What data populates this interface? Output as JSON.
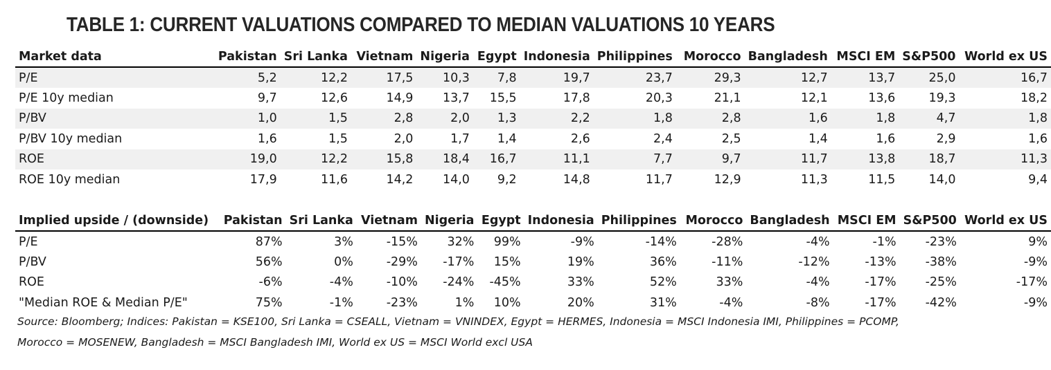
{
  "title": "TABLE 1: CURRENT VALUATIONS COMPARED TO MEDIAN VALUATIONS 10 YEARS",
  "market_data": {
    "headers": [
      "Market data",
      "Pakistan",
      "Sri Lanka",
      "Vietnam",
      "Nigeria",
      "Egypt",
      "Indonesia",
      "Philippines",
      "Morocco",
      "Bangladesh",
      "MSCI EM",
      "S&P500",
      "World ex US"
    ],
    "rows": [
      [
        "P/E",
        "5,2",
        "12,2",
        "17,5",
        "10,3",
        "7,8",
        "19,7",
        "23,7",
        "29,3",
        "12,7",
        "13,7",
        "25,0",
        "16,7"
      ],
      [
        "P/E 10y median",
        "9,7",
        "12,6",
        "14,9",
        "13,7",
        "15,5",
        "17,8",
        "20,3",
        "21,1",
        "12,1",
        "13,6",
        "19,3",
        "18,2"
      ],
      [
        "P/BV",
        "1,0",
        "1,5",
        "2,8",
        "2,0",
        "1,3",
        "2,2",
        "1,8",
        "2,8",
        "1,6",
        "1,8",
        "4,7",
        "1,8"
      ],
      [
        "P/BV 10y median",
        "1,6",
        "1,5",
        "2,0",
        "1,7",
        "1,4",
        "2,6",
        "2,4",
        "2,5",
        "1,4",
        "1,6",
        "2,9",
        "1,6"
      ],
      [
        "ROE",
        "19,0",
        "12,2",
        "15,8",
        "18,4",
        "16,7",
        "11,1",
        "7,7",
        "9,7",
        "11,7",
        "13,8",
        "18,7",
        "11,3"
      ],
      [
        "ROE 10y median",
        "17,9",
        "11,6",
        "14,2",
        "14,0",
        "9,2",
        "14,8",
        "11,7",
        "12,9",
        "11,3",
        "11,5",
        "14,0",
        "9,4"
      ]
    ]
  },
  "implied": {
    "headers": [
      "Implied upside / (downside)",
      "Pakistan",
      "Sri Lanka",
      "Vietnam",
      "Nigeria",
      "Egypt",
      "Indonesia",
      "Philippines",
      "Morocco",
      "Bangladesh",
      "MSCI EM",
      "S&P500",
      "World ex US"
    ],
    "rows": [
      [
        "P/E",
        "87%",
        "3%",
        "-15%",
        "32%",
        "99%",
        "-9%",
        "-14%",
        "-28%",
        "-4%",
        "-1%",
        "-23%",
        "9%"
      ],
      [
        "P/BV",
        "56%",
        "0%",
        "-29%",
        "-17%",
        "15%",
        "19%",
        "36%",
        "-11%",
        "-12%",
        "-13%",
        "-38%",
        "-9%"
      ],
      [
        "ROE",
        "-6%",
        "-4%",
        "-10%",
        "-24%",
        "-45%",
        "33%",
        "52%",
        "33%",
        "-4%",
        "-17%",
        "-25%",
        "-17%"
      ],
      [
        "\"Median ROE & Median P/E\"",
        "75%",
        "-1%",
        "-23%",
        "1%",
        "10%",
        "20%",
        "31%",
        "-4%",
        "-8%",
        "-17%",
        "-42%",
        "-9%"
      ]
    ]
  },
  "source_line1": "Source: Bloomberg; Indices: Pakistan = KSE100, Sri Lanka = CSEALL, Vietnam = VNINDEX, Egypt = HERMES, Indonesia = MSCI Indonesia IMI, Philippines = PCOMP,",
  "source_line2": "Morocco = MOSENEW, Bangladesh = MSCI Bangladesh IMI, World ex US = MSCI World excl USA"
}
